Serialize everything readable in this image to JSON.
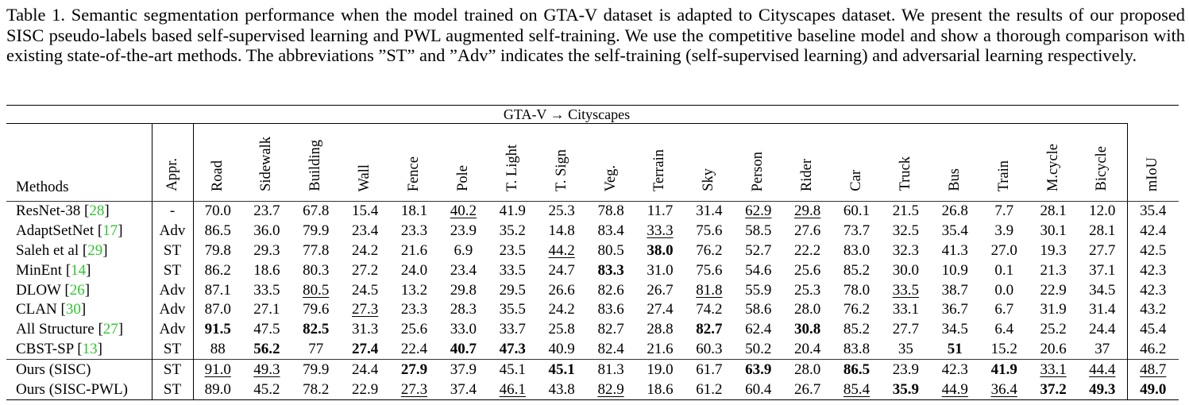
{
  "caption": "Table 1. Semantic segmentation performance when the model trained on GTA-V dataset is adapted to Cityscapes dataset. We present the results of our proposed SISC pseudo-labels based self-supervised learning and PWL augmented self-training. We use the competitive baseline model and show a thorough comparison with existing state-of-the-art methods. The abbreviations ”ST” and ”Adv” indicates the self-training (self-supervised learning) and adversarial learning respectively.",
  "table": {
    "super_header": "GTA-V → Cityscapes",
    "methods_header": "Methods",
    "appr_header": "Appr.",
    "classes": [
      "Road",
      "Sidewalk",
      "Building",
      "Wall",
      "Fence",
      "Pole",
      "T. Light",
      "T. Sign",
      "Veg.",
      "Terrain",
      "Sky",
      "Person",
      "Rider",
      "Car",
      "Truck",
      "Bus",
      "Train",
      "M.cycle",
      "Bicycle"
    ],
    "miou_header": "mIoU",
    "rows": [
      {
        "name": "ResNet-38",
        "ref": "28",
        "appr": "-",
        "values": [
          "70.0",
          "23.7",
          "67.8",
          "15.4",
          "18.1",
          "40.2",
          "41.9",
          "25.3",
          "78.8",
          "11.7",
          "31.4",
          "62.9",
          "29.8",
          "60.1",
          "21.5",
          "26.8",
          "7.7",
          "28.1",
          "12.0",
          "35.4"
        ],
        "bold": [],
        "underline": [
          5,
          11,
          12
        ]
      },
      {
        "name": "AdaptSetNet",
        "ref": "17",
        "appr": "Adv",
        "values": [
          "86.5",
          "36.0",
          "79.9",
          "23.4",
          "23.3",
          "23.9",
          "35.2",
          "14.8",
          "83.4",
          "33.3",
          "75.6",
          "58.5",
          "27.6",
          "73.7",
          "32.5",
          "35.4",
          "3.9",
          "30.1",
          "28.1",
          "42.4"
        ],
        "bold": [],
        "underline": [
          9
        ]
      },
      {
        "name": "Saleh et al",
        "ref": "29",
        "appr": "ST",
        "values": [
          "79.8",
          "29.3",
          "77.8",
          "24.2",
          "21.6",
          "6.9",
          "23.5",
          "44.2",
          "80.5",
          "38.0",
          "76.2",
          "52.7",
          "22.2",
          "83.0",
          "32.3",
          "41.3",
          "27.0",
          "19.3",
          "27.7",
          "42.5"
        ],
        "bold": [
          9
        ],
        "underline": [
          7
        ]
      },
      {
        "name": "MinEnt",
        "ref": "14",
        "appr": "ST",
        "values": [
          "86.2",
          "18.6",
          "80.3",
          "27.2",
          "24.0",
          "23.4",
          "33.5",
          "24.7",
          "83.3",
          "31.0",
          "75.6",
          "54.6",
          "25.6",
          "85.2",
          "30.0",
          "10.9",
          "0.1",
          "21.3",
          "37.1",
          "42.3"
        ],
        "bold": [
          8
        ],
        "underline": []
      },
      {
        "name": "DLOW",
        "ref": "26",
        "appr": "Adv",
        "values": [
          "87.1",
          "33.5",
          "80.5",
          "24.5",
          "13.2",
          "29.8",
          "29.5",
          "26.6",
          "82.6",
          "26.7",
          "81.8",
          "55.9",
          "25.3",
          "78.0",
          "33.5",
          "38.7",
          "0.0",
          "22.9",
          "34.5",
          "42.3"
        ],
        "bold": [],
        "underline": [
          2,
          10,
          14
        ]
      },
      {
        "name": "CLAN",
        "ref": "30",
        "appr": "Adv",
        "values": [
          "87.0",
          "27.1",
          "79.6",
          "27.3",
          "23.3",
          "28.3",
          "35.5",
          "24.2",
          "83.6",
          "27.4",
          "74.2",
          "58.6",
          "28.0",
          "76.2",
          "33.1",
          "36.7",
          "6.7",
          "31.9",
          "31.4",
          "43.2"
        ],
        "bold": [],
        "underline": [
          3
        ]
      },
      {
        "name": "All Structure",
        "ref": "27",
        "appr": "Adv",
        "values": [
          "91.5",
          "47.5",
          "82.5",
          "31.3",
          "25.6",
          "33.0",
          "33.7",
          "25.8",
          "82.7",
          "28.8",
          "82.7",
          "62.4",
          "30.8",
          "85.2",
          "27.7",
          "34.5",
          "6.4",
          "25.2",
          "24.4",
          "45.4"
        ],
        "bold": [
          0,
          2,
          10,
          12
        ],
        "underline": []
      },
      {
        "name": "CBST-SP",
        "ref": "13",
        "appr": "ST",
        "values": [
          "88",
          "56.2",
          "77",
          "27.4",
          "22.4",
          "40.7",
          "47.3",
          "40.9",
          "82.4",
          "21.6",
          "60.3",
          "50.2",
          "20.4",
          "83.8",
          "35",
          "51",
          "15.2",
          "20.6",
          "37",
          "46.2"
        ],
        "bold": [
          1,
          3,
          5,
          6,
          15
        ],
        "underline": []
      },
      {
        "name": "Ours (SISC)",
        "ref": "",
        "appr": "ST",
        "values": [
          "91.0",
          "49.3",
          "79.9",
          "24.4",
          "27.9",
          "37.9",
          "45.1",
          "45.1",
          "81.3",
          "19.0",
          "61.7",
          "63.9",
          "28.0",
          "86.5",
          "23.9",
          "42.3",
          "41.9",
          "33.1",
          "44.4",
          "48.7"
        ],
        "bold": [
          4,
          7,
          11,
          13,
          16
        ],
        "underline": [
          0,
          1,
          17,
          18,
          19
        ]
      },
      {
        "name": "Ours (SISC-PWL)",
        "ref": "",
        "appr": "ST",
        "values": [
          "89.0",
          "45.2",
          "78.2",
          "22.9",
          "27.3",
          "37.4",
          "46.1",
          "43.8",
          "82.9",
          "18.6",
          "61.2",
          "60.4",
          "26.7",
          "85.4",
          "35.9",
          "44.9",
          "36.4",
          "37.2",
          "49.3",
          "49.0"
        ],
        "bold": [
          14,
          17,
          18,
          19
        ],
        "underline": [
          4,
          6,
          8,
          13,
          15,
          16
        ]
      }
    ]
  }
}
